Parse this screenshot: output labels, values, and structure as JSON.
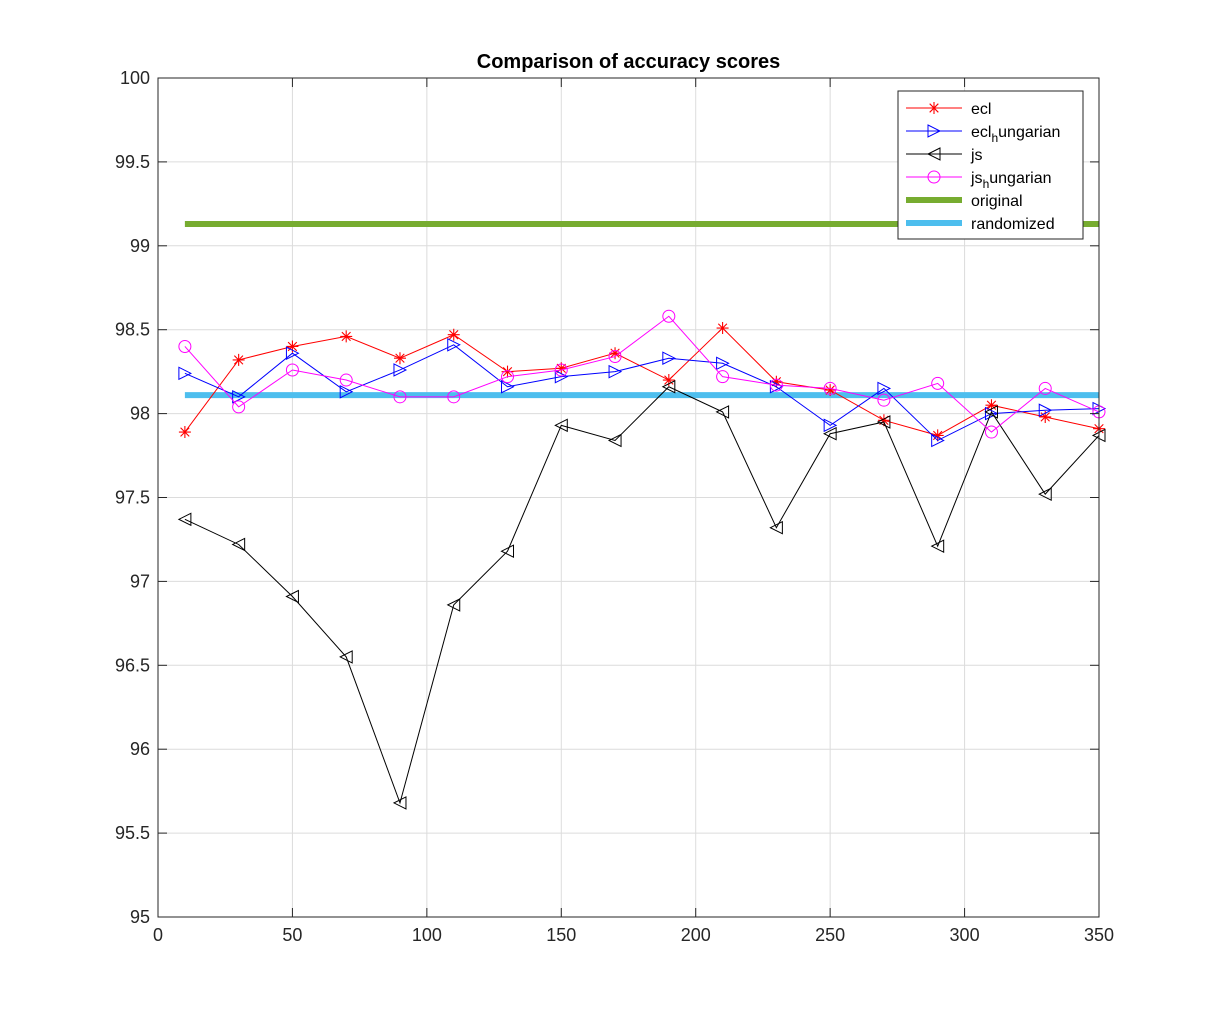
{
  "chart_data": {
    "type": "line",
    "title": "Comparison of accuracy scores",
    "xlabel": "",
    "ylabel": "",
    "xlim": [
      0,
      350
    ],
    "ylim": [
      95,
      100
    ],
    "xticks": [
      0,
      50,
      100,
      150,
      200,
      250,
      300,
      350
    ],
    "yticks": [
      95,
      95.5,
      96,
      96.5,
      97,
      97.5,
      98,
      98.5,
      99,
      99.5,
      100
    ],
    "xtick_labels": [
      "0",
      "50",
      "100",
      "150",
      "200",
      "250",
      "300",
      "350"
    ],
    "ytick_labels": [
      "95",
      "95.5",
      "96",
      "96.5",
      "97",
      "97.5",
      "98",
      "98.5",
      "99",
      "99.5",
      "100"
    ],
    "grid": true,
    "legend_position": "top-right",
    "x": [
      10,
      30,
      50,
      70,
      90,
      110,
      130,
      150,
      170,
      190,
      210,
      230,
      250,
      270,
      290,
      310,
      330,
      350
    ],
    "series": [
      {
        "name": "ecl",
        "legend_main": "ecl",
        "legend_sub": "",
        "legend_tail": "",
        "color": "#ff0000",
        "marker": "asterisk",
        "values": [
          97.89,
          98.32,
          98.4,
          98.46,
          98.33,
          98.47,
          98.25,
          98.27,
          98.36,
          98.2,
          98.51,
          98.19,
          98.14,
          97.96,
          97.87,
          98.05,
          97.98,
          97.91
        ]
      },
      {
        "name": "ecl_hungarian",
        "legend_main": "ecl",
        "legend_sub": "h",
        "legend_tail": "ungarian",
        "color": "#0000ff",
        "marker": "triangle-right",
        "values": [
          98.24,
          98.1,
          98.36,
          98.13,
          98.26,
          98.41,
          98.16,
          98.22,
          98.25,
          98.33,
          98.3,
          98.16,
          97.93,
          98.15,
          97.84,
          98.0,
          98.02,
          98.03
        ]
      },
      {
        "name": "js",
        "legend_main": "js",
        "legend_sub": "",
        "legend_tail": "",
        "color": "#000000",
        "marker": "triangle-left",
        "values": [
          97.37,
          97.22,
          96.91,
          96.55,
          95.68,
          96.86,
          97.18,
          97.93,
          97.84,
          98.16,
          98.01,
          97.32,
          97.88,
          97.95,
          97.21,
          98.01,
          97.52,
          97.87
        ]
      },
      {
        "name": "js_hungarian",
        "legend_main": "js",
        "legend_sub": "h",
        "legend_tail": "ungarian",
        "color": "#ff00ff",
        "marker": "circle",
        "values": [
          98.4,
          98.04,
          98.26,
          98.2,
          98.1,
          98.1,
          98.22,
          98.26,
          98.34,
          98.58,
          98.22,
          98.17,
          98.15,
          98.08,
          98.18,
          97.89,
          98.15,
          98.01
        ]
      }
    ],
    "reference_lines": [
      {
        "name": "original",
        "legend_main": "original",
        "color": "#77ac30",
        "value": 99.13,
        "x_range": [
          10,
          350
        ]
      },
      {
        "name": "randomized",
        "legend_main": "randomized",
        "color": "#4dbeee",
        "value": 98.11,
        "x_range": [
          10,
          350
        ]
      }
    ]
  }
}
